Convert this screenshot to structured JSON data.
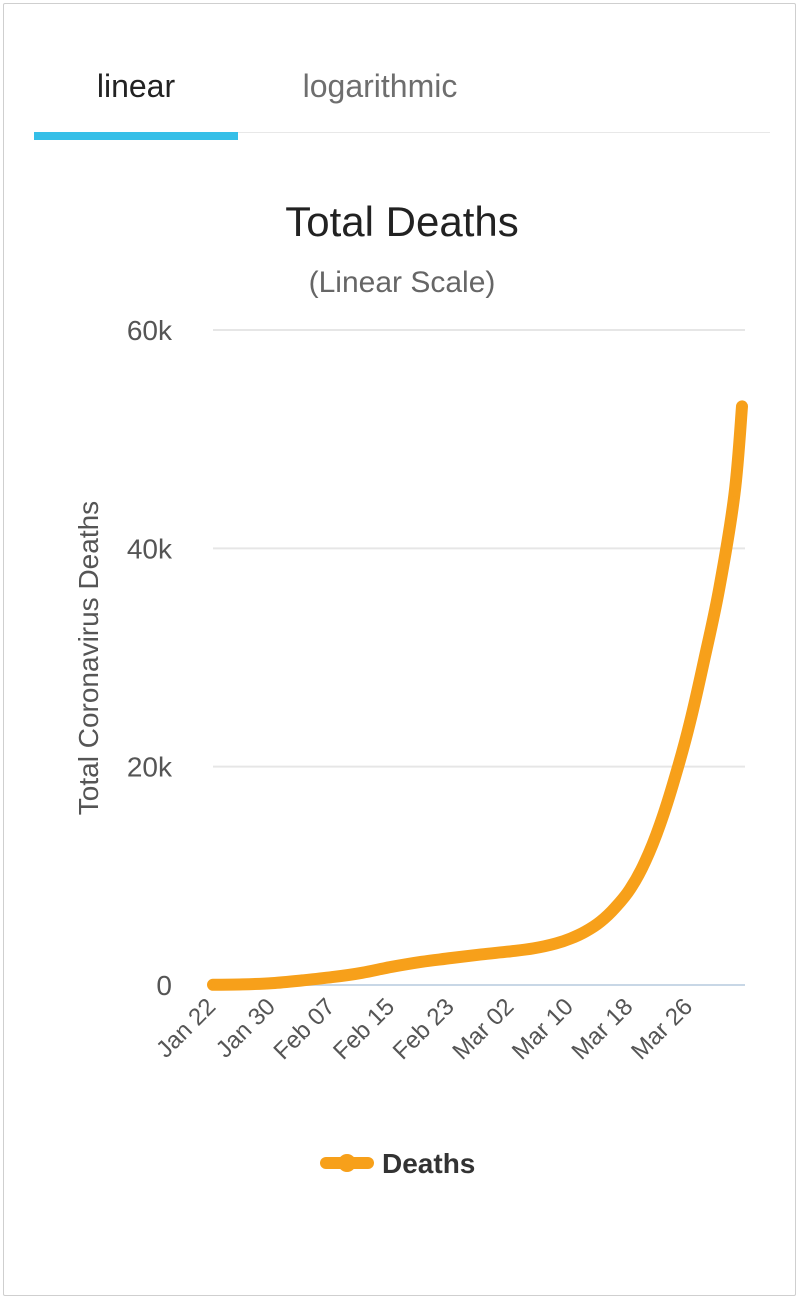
{
  "tabs": [
    {
      "label": "linear",
      "active": true
    },
    {
      "label": "logarithmic",
      "active": false
    }
  ],
  "colors": {
    "accent": "#35bfe8",
    "series": "#f7a01a",
    "grid": "#e6e6e6",
    "baseline": "#c8d7e6"
  },
  "chart_data": {
    "type": "line",
    "title": "Total Deaths",
    "subtitle": "(Linear Scale)",
    "xlabel": "",
    "ylabel": "Total Coronavirus Deaths",
    "ylim": [
      0,
      60000
    ],
    "y_ticks": [
      0,
      20000,
      40000,
      60000
    ],
    "y_tick_labels": [
      "0",
      "20k",
      "40k",
      "60k"
    ],
    "x_tick_labels": [
      "Jan 22",
      "Jan 30",
      "Feb 07",
      "Feb 15",
      "Feb 23",
      "Mar 02",
      "Mar 10",
      "Mar 18",
      "Mar 26"
    ],
    "x_tick_dates": [
      "2020-01-22",
      "2020-01-30",
      "2020-02-07",
      "2020-02-15",
      "2020-02-23",
      "2020-03-02",
      "2020-03-10",
      "2020-03-18",
      "2020-03-26"
    ],
    "x_range": [
      "2020-01-22",
      "2020-04-02"
    ],
    "grid": true,
    "legend": "bottom",
    "series": [
      {
        "name": "Deaths",
        "points": [
          [
            "2020-01-22",
            17
          ],
          [
            "2020-01-26",
            56
          ],
          [
            "2020-01-30",
            170
          ],
          [
            "2020-02-03",
            425
          ],
          [
            "2020-02-07",
            720
          ],
          [
            "2020-02-11",
            1113
          ],
          [
            "2020-02-15",
            1666
          ],
          [
            "2020-02-19",
            2122
          ],
          [
            "2020-02-23",
            2469
          ],
          [
            "2020-02-27",
            2800
          ],
          [
            "2020-03-02",
            3085
          ],
          [
            "2020-03-05",
            3350
          ],
          [
            "2020-03-08",
            3800
          ],
          [
            "2020-03-10",
            4260
          ],
          [
            "2020-03-12",
            4900
          ],
          [
            "2020-03-14",
            5800
          ],
          [
            "2020-03-16",
            7100
          ],
          [
            "2020-03-18",
            8800
          ],
          [
            "2020-03-20",
            11300
          ],
          [
            "2020-03-22",
            14700
          ],
          [
            "2020-03-24",
            19000
          ],
          [
            "2020-03-26",
            24000
          ],
          [
            "2020-03-28",
            30000
          ],
          [
            "2020-03-30",
            36500
          ],
          [
            "2020-04-01",
            45000
          ],
          [
            "2020-04-02",
            53000
          ]
        ]
      }
    ]
  }
}
